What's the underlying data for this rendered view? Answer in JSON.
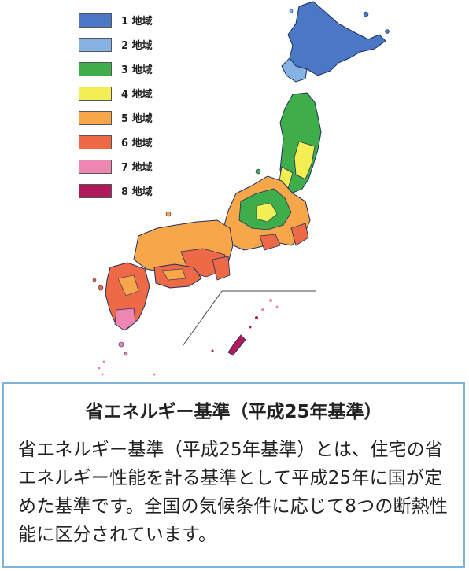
{
  "legend": {
    "items": [
      {
        "label": "1 地域",
        "color": "#4a78c4"
      },
      {
        "label": "2 地域",
        "color": "#86b2e4"
      },
      {
        "label": "3 地域",
        "color": "#3fae4a"
      },
      {
        "label": "4 地域",
        "color": "#f2ee54"
      },
      {
        "label": "5 地域",
        "color": "#f7a64a"
      },
      {
        "label": "6 地域",
        "color": "#ee6a46"
      },
      {
        "label": "7 地域",
        "color": "#ee86b2"
      },
      {
        "label": "8 地域",
        "color": "#b01a5a"
      }
    ]
  },
  "info": {
    "title": "省エネルギー基準（平成25年基準）",
    "body": "省エネルギー基準（平成25年基準）とは、住宅の省エネルギー性能を計る基準として平成25年に国が定めた基準です。全国の気候条件に応じて8つの断熱性能に区分されています。"
  }
}
